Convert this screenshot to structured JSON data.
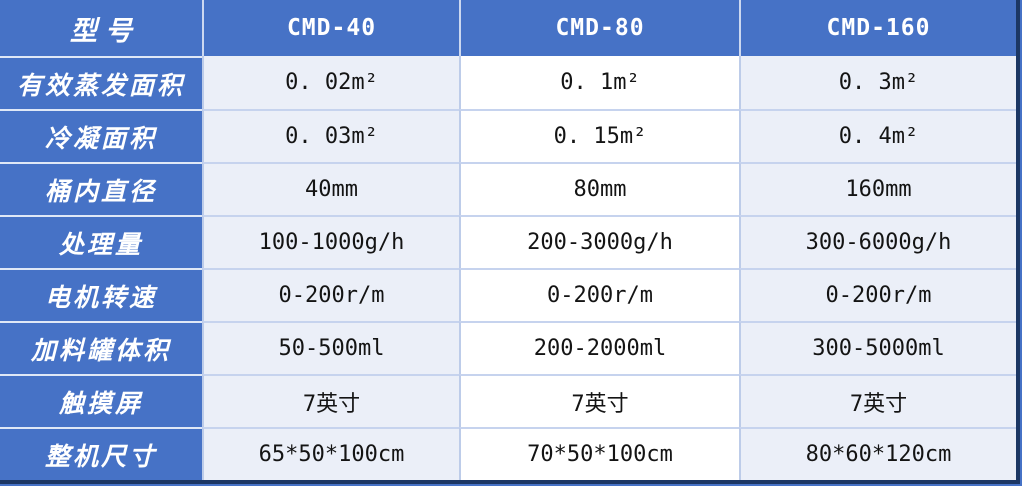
{
  "table": {
    "header": {
      "model_label": "型号",
      "columns": [
        "CMD-40",
        "CMD-80",
        "CMD-160"
      ]
    },
    "rows": [
      {
        "label": "有效蒸发面积",
        "values": [
          "0. 02m²",
          "0. 1m²",
          "0. 3m²"
        ]
      },
      {
        "label": "冷凝面积",
        "values": [
          "0. 03m²",
          "0. 15m²",
          "0. 4m²"
        ]
      },
      {
        "label": "桶内直径",
        "values": [
          "40mm",
          "80mm",
          "160mm"
        ]
      },
      {
        "label": "处理量",
        "values": [
          "100-1000g/h",
          "200-3000g/h",
          "300-6000g/h"
        ]
      },
      {
        "label": "电机转速",
        "values": [
          "0-200r/m",
          "0-200r/m",
          "0-200r/m"
        ]
      },
      {
        "label": "加料罐体积",
        "values": [
          "50-500ml",
          "200-2000ml",
          "300-5000ml"
        ]
      },
      {
        "label": "触摸屏",
        "values": [
          "7英寸",
          "7英寸",
          "7英寸"
        ]
      },
      {
        "label": "整机尺寸",
        "values": [
          "65*50*100cm",
          "70*50*100cm",
          "80*60*120cm"
        ]
      }
    ],
    "colors": {
      "header_blue": "#4672c6",
      "label_column_blue": "#4672c6",
      "band_lavender": "#ebeff8",
      "band_white": "#ffffff",
      "grid_line": "#c6d3ee",
      "accent_navy": "#1c3764",
      "accent_blue": "#4672c6",
      "value_text": "#141414",
      "header_text": "#ffffff"
    }
  }
}
